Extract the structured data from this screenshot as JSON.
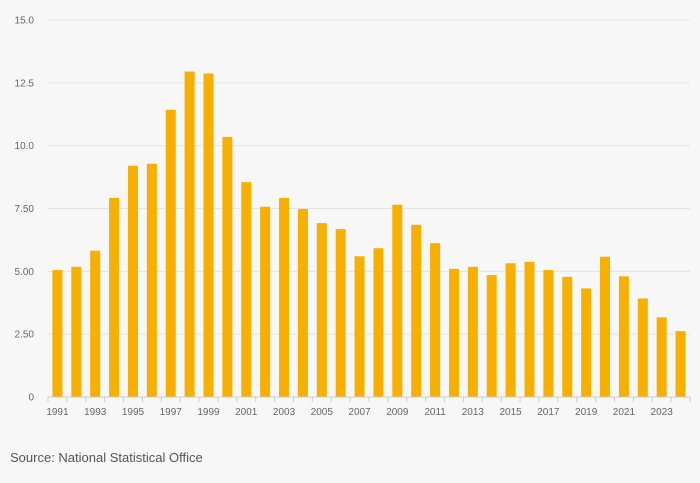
{
  "chart_data": {
    "type": "bar",
    "title": "",
    "xlabel": "",
    "ylabel": "",
    "ylim": [
      0,
      15
    ],
    "y_ticks": [
      "0",
      "2.50",
      "5.00",
      "7.50",
      "10.0",
      "12.5",
      "15.0"
    ],
    "y_tick_values": [
      0,
      2.5,
      5,
      7.5,
      10,
      12.5,
      15
    ],
    "grid": true,
    "bar_color": "#f7b000",
    "categories": [
      1991,
      1992,
      1993,
      1994,
      1995,
      1996,
      1997,
      1998,
      1999,
      2000,
      2001,
      2002,
      2003,
      2004,
      2005,
      2006,
      2007,
      2008,
      2009,
      2010,
      2011,
      2012,
      2013,
      2014,
      2015,
      2016,
      2017,
      2018,
      2019,
      2020,
      2021,
      2022,
      2023,
      2024
    ],
    "x_tick_labels": [
      "1991",
      "1993",
      "1995",
      "1997",
      "1999",
      "2001",
      "2003",
      "2005",
      "2007",
      "2009",
      "2011",
      "2013",
      "2015",
      "2017",
      "2019",
      "2021",
      "2023"
    ],
    "values": [
      5.05,
      5.18,
      5.82,
      7.92,
      9.2,
      9.28,
      11.43,
      12.95,
      12.87,
      10.35,
      8.55,
      7.57,
      7.92,
      7.48,
      6.92,
      6.68,
      5.6,
      5.92,
      7.65,
      6.85,
      6.12,
      5.1,
      5.18,
      4.85,
      5.32,
      5.38,
      5.05,
      4.78,
      4.32,
      5.58,
      4.8,
      3.92,
      3.17,
      2.62
    ]
  },
  "source": "Source: National Statistical Office"
}
